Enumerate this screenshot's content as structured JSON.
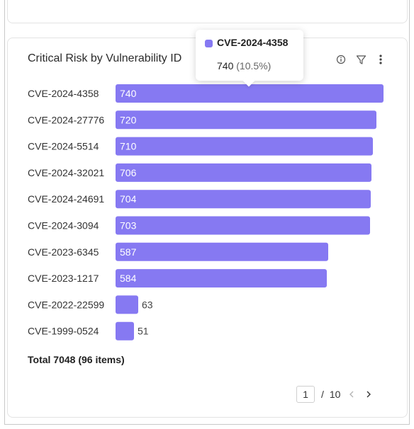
{
  "card": {
    "title": "Critical Risk by Vulnerability ID",
    "icons": [
      "info-icon",
      "filter-icon",
      "more-vertical-icon"
    ]
  },
  "tooltip": {
    "name": "CVE-2024-4358",
    "value": "740",
    "percent": "(10.5%)"
  },
  "chart_data": {
    "type": "bar",
    "orientation": "horizontal",
    "categories": [
      "CVE-2024-4358",
      "CVE-2024-27776",
      "CVE-2024-5514",
      "CVE-2024-32021",
      "CVE-2024-24691",
      "CVE-2024-3094",
      "CVE-2023-6345",
      "CVE-2023-1217",
      "CVE-2022-22599",
      "CVE-1999-0524"
    ],
    "values": [
      740,
      720,
      710,
      706,
      704,
      703,
      587,
      584,
      63,
      51
    ],
    "title": "Critical Risk by Vulnerability ID",
    "xlabel": "",
    "ylabel": "",
    "grid": false,
    "bar_color": "#8679f2"
  },
  "summary": {
    "total": "Total 7048 (96 items)"
  },
  "pagination": {
    "current": "1",
    "separator": "/",
    "total_pages": "10"
  },
  "colors": {
    "accent": "#8679f2",
    "border": "#e3e3e3"
  }
}
